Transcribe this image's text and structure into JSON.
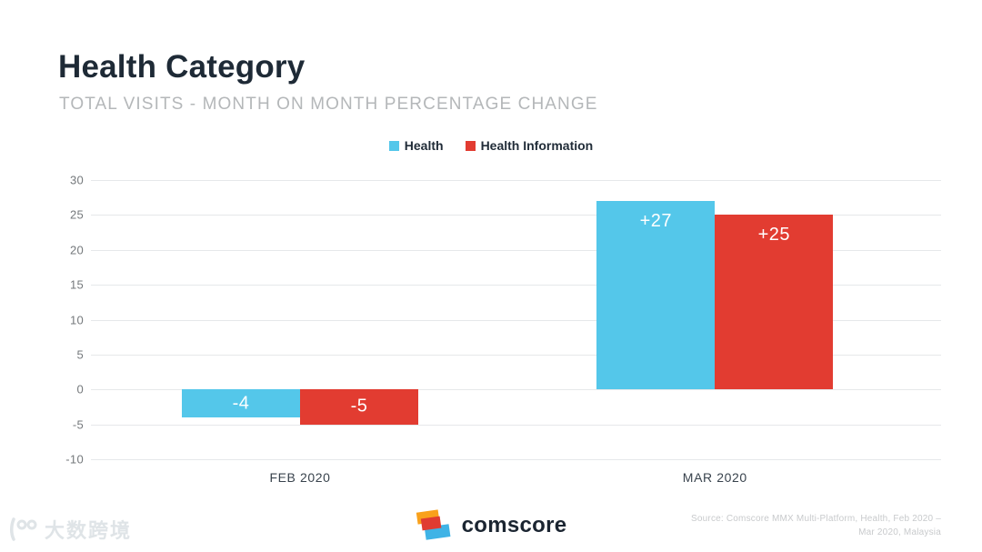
{
  "chart_data": {
    "type": "bar",
    "title": "Health Category",
    "subtitle": "TOTAL VISITS - MONTH ON MONTH PERCENTAGE CHANGE",
    "categories": [
      "FEB 2020",
      "MAR 2020"
    ],
    "series": [
      {
        "name": "Health",
        "color": "#54C7EA",
        "values": [
          -4,
          27
        ],
        "value_labels": [
          "-4",
          "+27"
        ]
      },
      {
        "name": "Health Information",
        "color": "#E23C31",
        "values": [
          -5,
          25
        ],
        "value_labels": [
          "-5",
          "+25"
        ]
      }
    ],
    "ylim": [
      -10,
      30
    ],
    "yticks": [
      30,
      25,
      20,
      15,
      10,
      5,
      0,
      -5,
      -10
    ],
    "grid": true,
    "legend_position": "top-center",
    "value_label_color": "#FFFFFF"
  },
  "footer": {
    "brand": "comscore",
    "logo_colors": {
      "orange": "#F9A11B",
      "red": "#E03C31",
      "blue": "#3FB3E6"
    },
    "source_line1": "Source: Comscore MMX Multi-Platform, Health, Feb 2020 –",
    "source_line2": "Mar 2020, Malaysia",
    "watermark": "大数跨境"
  },
  "colors": {
    "title": "#1E2A36",
    "subtitle": "#B4B7B9",
    "grid": "#E6E8EA",
    "tick_label": "#75797C",
    "axis_label": "#39434D",
    "background": "#FFFFFF"
  }
}
